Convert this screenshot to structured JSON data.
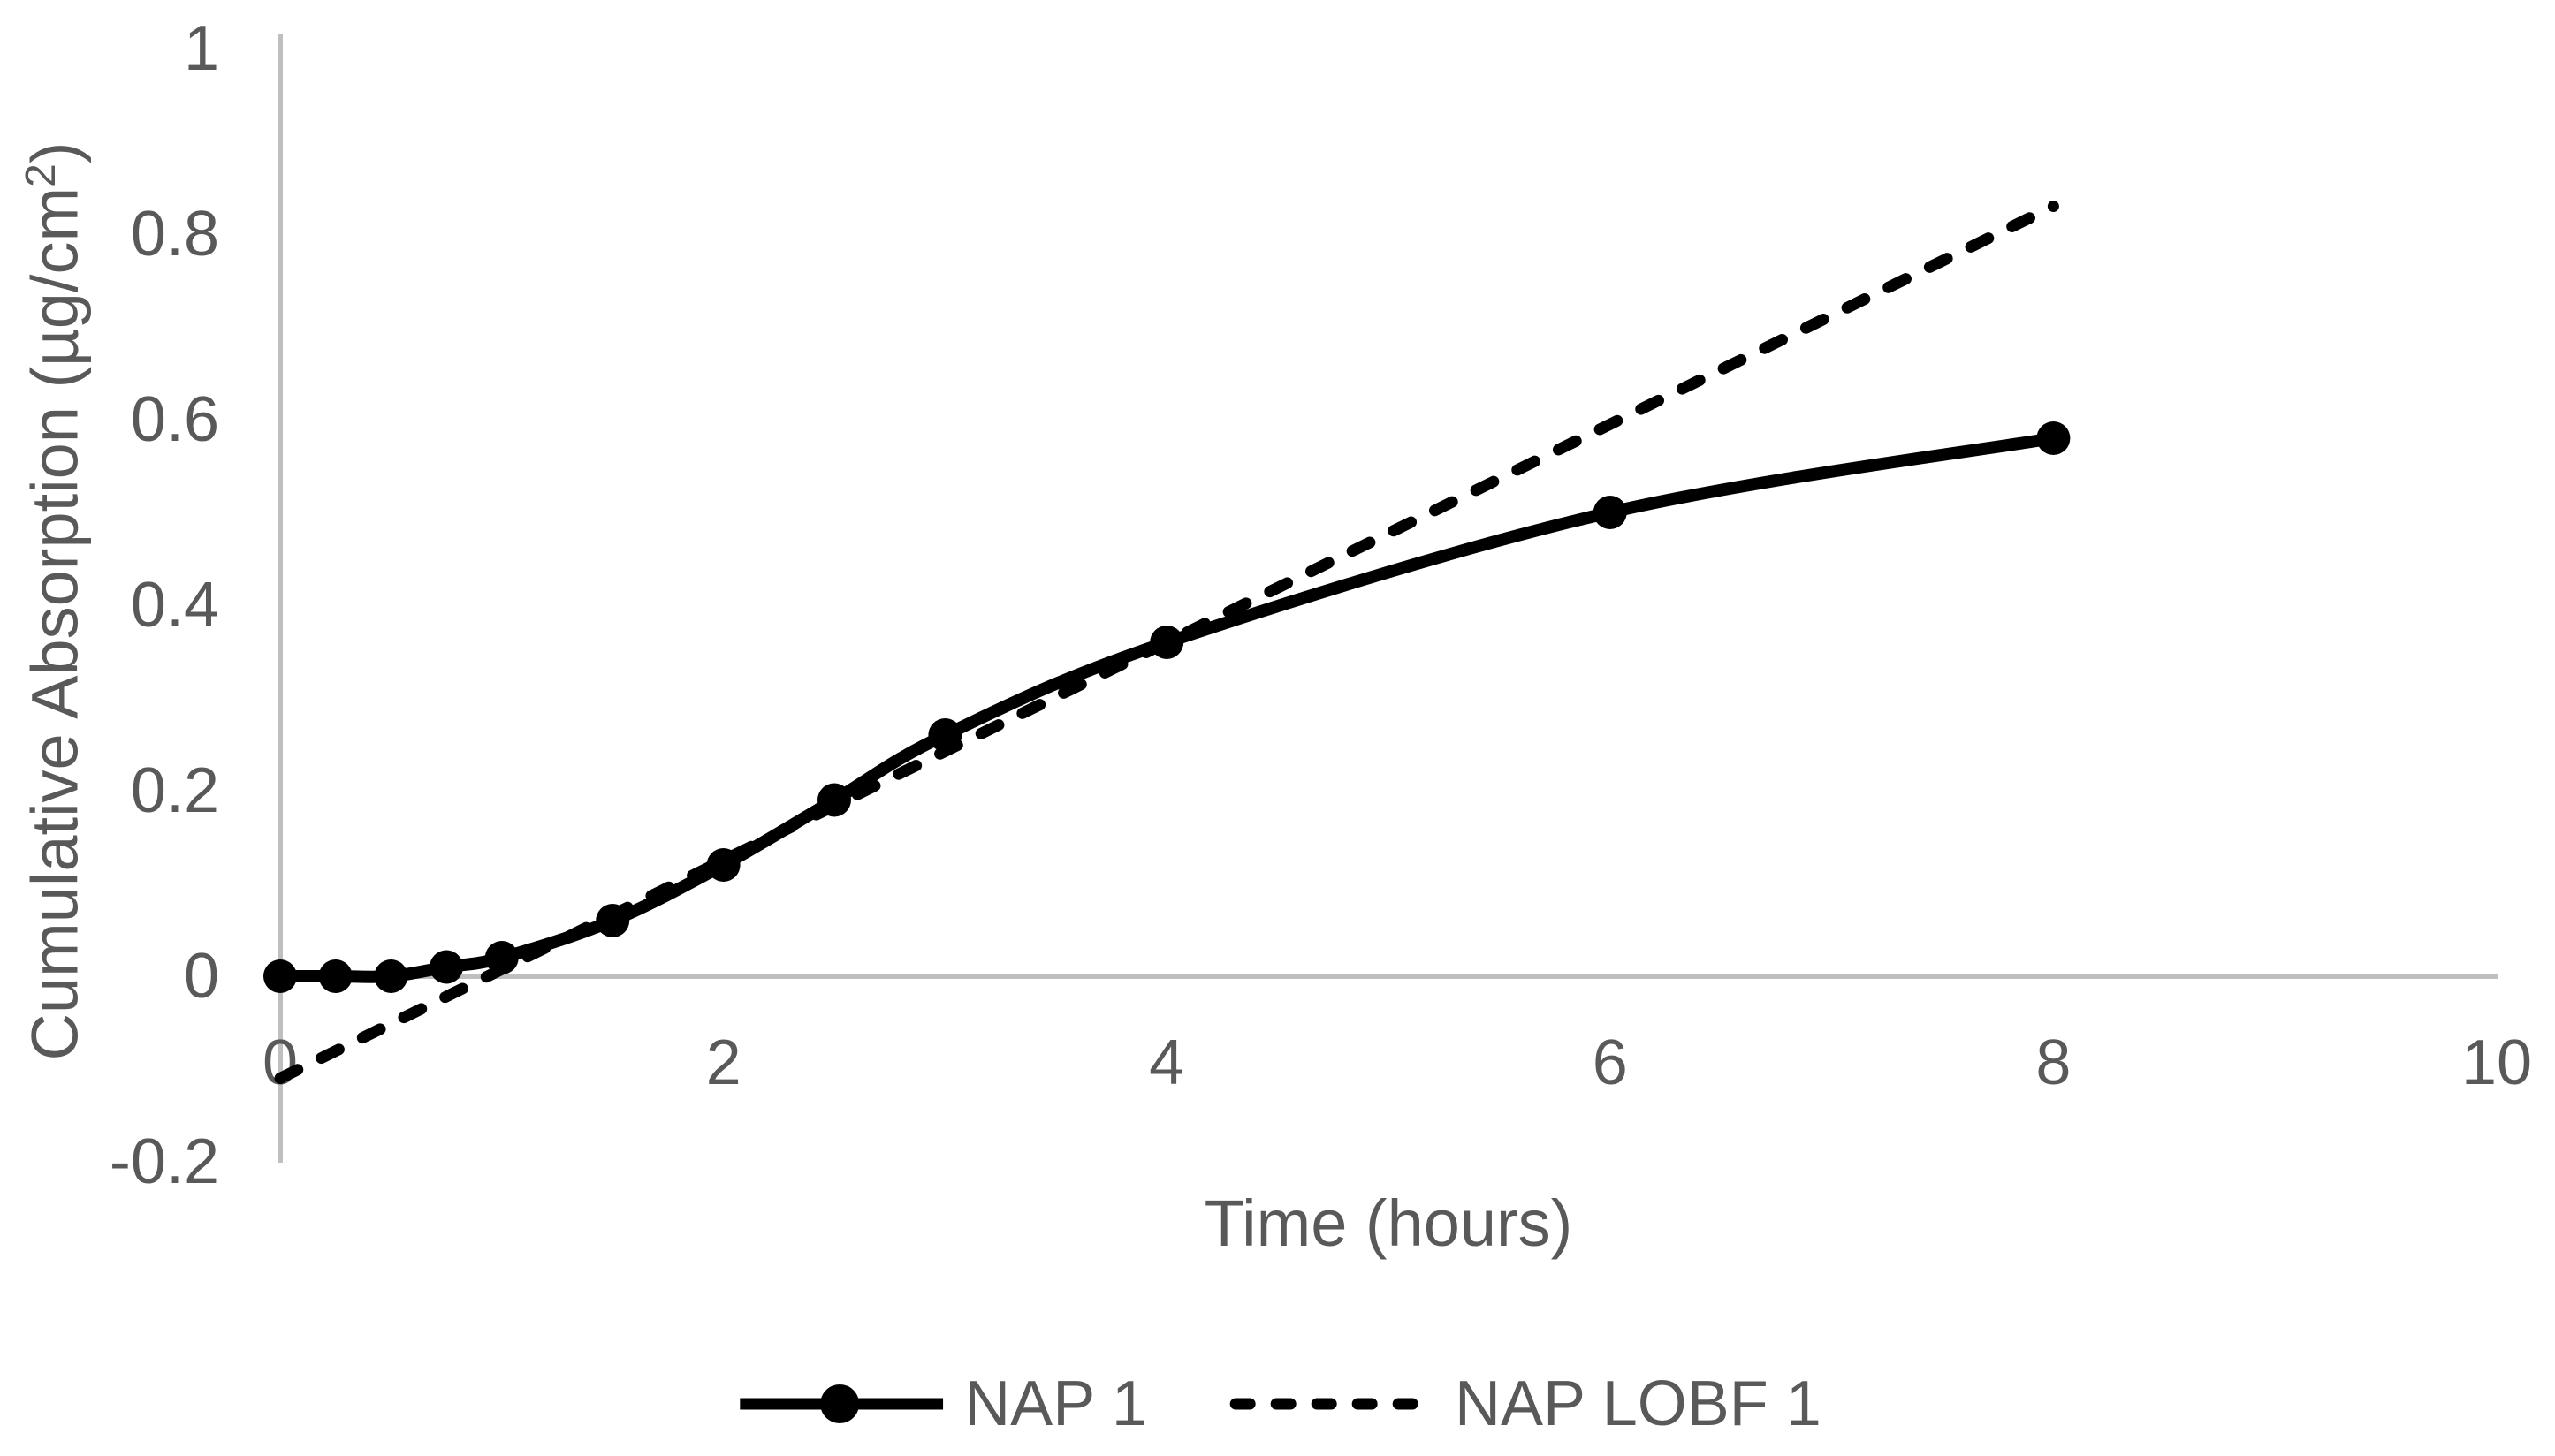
{
  "figure": {
    "background": "#ffffff"
  },
  "colors": {
    "series": "#000000",
    "axis_line": "#bfbfbf",
    "label_text": "#595959"
  },
  "axes": {
    "x": {
      "title": "Time (hours)",
      "min": 0,
      "max": 10,
      "tick_values": [
        0,
        2,
        4,
        6,
        8,
        10
      ],
      "tick_labels": [
        "0",
        "2",
        "4",
        "6",
        "8",
        "10"
      ]
    },
    "y": {
      "title_prefix": "Cumulative Absorption (µg/cm",
      "title_sup": "2",
      "title_suffix": ")",
      "min": -0.2,
      "max": 1,
      "tick_values": [
        1,
        0.8,
        0.6,
        0.4,
        0.2,
        0,
        -0.2
      ],
      "tick_labels": [
        "1",
        "0.8",
        "0.6",
        "0.4",
        "0.2",
        "0",
        "-0.2"
      ]
    }
  },
  "legend": {
    "items": [
      {
        "label": "NAP 1",
        "style": "solid-with-marker"
      },
      {
        "label": "NAP LOBF 1",
        "style": "dashed"
      }
    ],
    "position": "bottom-center"
  },
  "chart_data": {
    "type": "line",
    "title": "",
    "xlabel": "Time (hours)",
    "ylabel": "Cumulative Absorption (µg/cm²)",
    "xlim": [
      0,
      10
    ],
    "ylim": [
      -0.2,
      1
    ],
    "grid": false,
    "series": [
      {
        "name": "NAP 1",
        "line_style": "solid",
        "marker": "circle",
        "smooth": true,
        "points": [
          [
            0,
            0
          ],
          [
            0.25,
            0
          ],
          [
            0.5,
            0
          ],
          [
            0.75,
            0.01
          ],
          [
            1,
            0.02
          ],
          [
            1.5,
            0.06
          ],
          [
            2,
            0.12
          ],
          [
            2.5,
            0.19
          ],
          [
            3,
            0.26
          ],
          [
            4,
            0.36
          ],
          [
            6,
            0.5
          ],
          [
            8,
            0.58
          ]
        ]
      },
      {
        "name": "NAP LOBF 1",
        "line_style": "dashed",
        "marker": "none",
        "smooth": false,
        "points": [
          [
            0,
            -0.11
          ],
          [
            8,
            0.83
          ]
        ]
      }
    ]
  }
}
